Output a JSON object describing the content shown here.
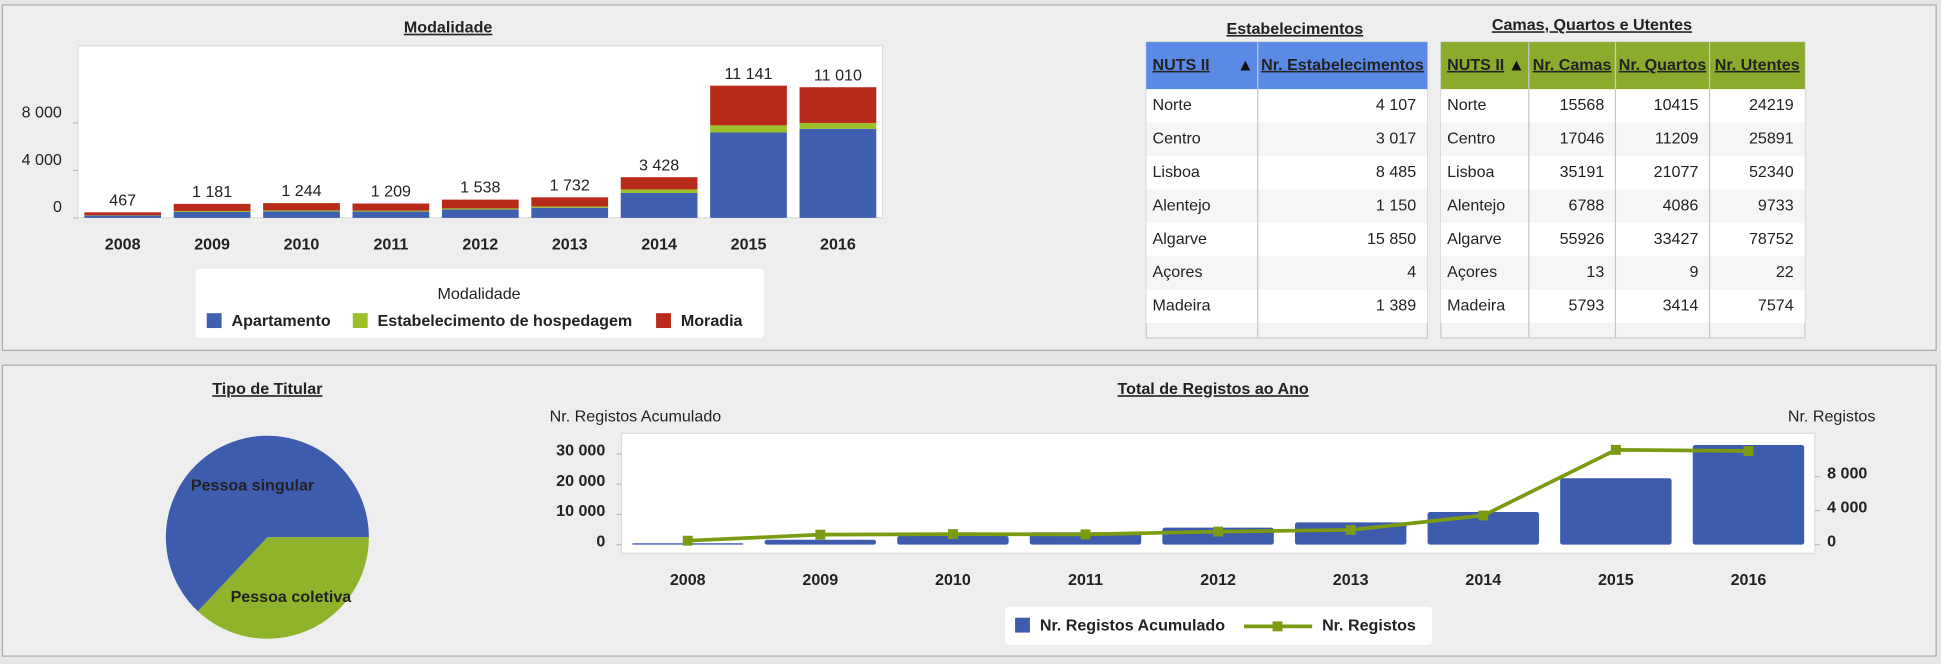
{
  "chart_data": [
    {
      "type": "bar",
      "stacked": true,
      "title": "Modalidade",
      "categories": [
        "2008",
        "2009",
        "2010",
        "2011",
        "2012",
        "2013",
        "2014",
        "2015",
        "2016"
      ],
      "series": [
        {
          "name": "Apartamento",
          "color": "#3f5fb0",
          "values": [
            200,
            500,
            550,
            530,
            700,
            850,
            2100,
            7200,
            7500
          ]
        },
        {
          "name": "Estabelecimento de hospedagem",
          "color": "#9cbf2a",
          "values": [
            30,
            80,
            80,
            80,
            100,
            110,
            300,
            600,
            500
          ]
        },
        {
          "name": "Moradia",
          "color": "#b82a1a",
          "values": [
            237,
            601,
            614,
            599,
            738,
            772,
            1028,
            3341,
            3010
          ]
        }
      ],
      "totals": [
        467,
        1181,
        1244,
        1209,
        1538,
        1732,
        3428,
        11141,
        11010
      ],
      "total_labels": [
        "467",
        "1 181",
        "1 244",
        "1 209",
        "1 538",
        "1 732",
        "3 428",
        "11 141",
        "11 010"
      ],
      "ylim": [
        0,
        14500
      ],
      "yticks": [
        0,
        {
          "value": 4000,
          "label": "4 000"
        },
        {
          "value": 8000,
          "label": "8 000"
        }
      ],
      "legend_title": "Modalidade",
      "legend": "bottom"
    },
    {
      "type": "pie",
      "title": "Tipo de Titular",
      "categories": [
        "Pessoa singular",
        "Pessoa coletiva"
      ],
      "values": [
        63,
        37
      ],
      "colors": [
        "#3d5cae",
        "#8fb32a"
      ]
    },
    {
      "type": "combo",
      "title": "Total de Registos ao Ano",
      "y_label": "Nr. Registos Acumulado",
      "y2_label": "Nr. Registos",
      "categories": [
        "2008",
        "2009",
        "2010",
        "2011",
        "2012",
        "2013",
        "2014",
        "2015",
        "2016"
      ],
      "series": [
        {
          "name": "Nr. Registos Acumulado",
          "type": "bar",
          "color": "#3d5cae",
          "values": [
            467,
            1648,
            2892,
            4101,
            5639,
            7371,
            10799,
            21940,
            32950
          ]
        },
        {
          "name": "Nr. Registos",
          "type": "line",
          "axis": "y2",
          "color": "#7b9c12",
          "values": [
            467,
            1181,
            1244,
            1209,
            1538,
            1732,
            3428,
            11141,
            11010
          ]
        }
      ],
      "ylim": [
        0,
        36000
      ],
      "yticks": [
        0,
        {
          "value": 10000,
          "label": "10 000"
        },
        {
          "value": 20000,
          "label": "20 000"
        },
        {
          "value": 30000,
          "label": "30 000"
        }
      ],
      "y2lim": [
        0,
        12800
      ],
      "y2ticks": [
        0,
        {
          "value": 4000,
          "label": "4 000"
        },
        {
          "value": 8000,
          "label": "8 000"
        }
      ],
      "legend": "bottom"
    }
  ],
  "tables": [
    {
      "title": "Estabelecimentos",
      "columns": [
        "NUTS II",
        "Nr. Estabelecimentos"
      ],
      "rows": [
        [
          "Norte",
          "4 107"
        ],
        [
          "Centro",
          "3 017"
        ],
        [
          "Lisboa",
          "8 485"
        ],
        [
          "Alentejo",
          "1 150"
        ],
        [
          "Algarve",
          "15 850"
        ],
        [
          "Açores",
          "4"
        ],
        [
          "Madeira",
          "1 389"
        ]
      ]
    },
    {
      "title": "Camas, Quartos e Utentes",
      "columns": [
        "NUTS II",
        "Nr. Camas",
        "Nr. Quartos",
        "Nr. Utentes"
      ],
      "rows": [
        [
          "Norte",
          15568,
          10415,
          24219
        ],
        [
          "Centro",
          17046,
          11209,
          25891
        ],
        [
          "Lisboa",
          35191,
          21077,
          52340
        ],
        [
          "Alentejo",
          6788,
          4086,
          9733
        ],
        [
          "Algarve",
          55926,
          33427,
          78752
        ],
        [
          "Açores",
          13,
          9,
          22
        ],
        [
          "Madeira",
          5793,
          3414,
          7574
        ]
      ]
    }
  ]
}
